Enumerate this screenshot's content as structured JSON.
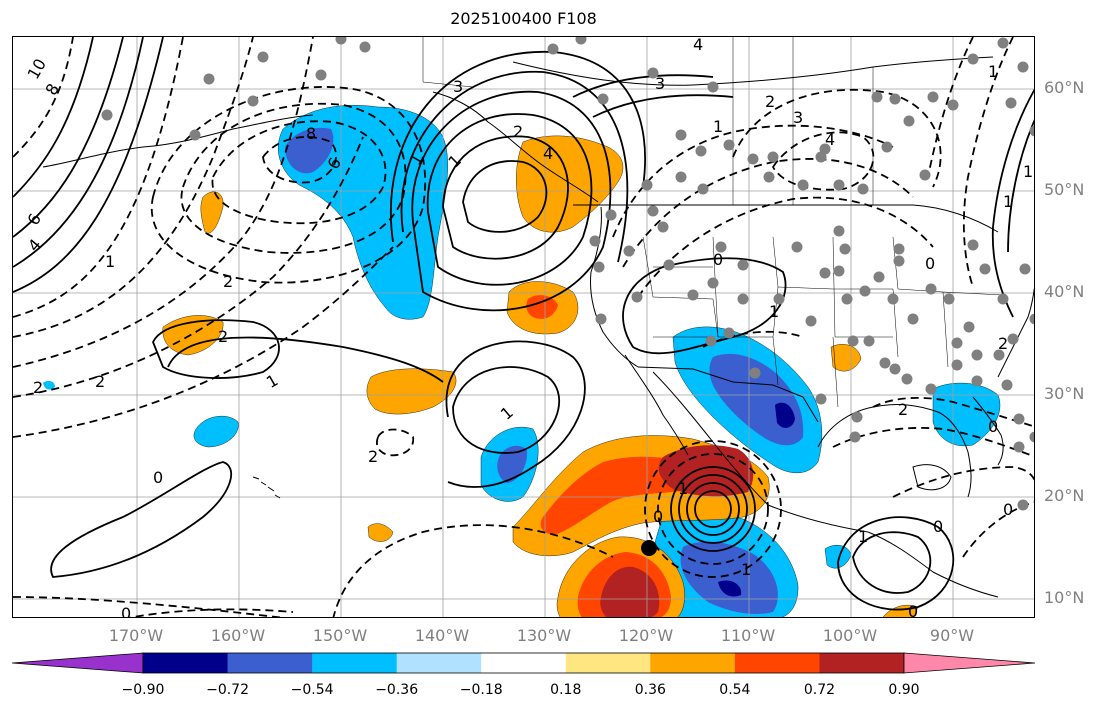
{
  "title": "2025100400 F108",
  "lat_labels": [
    {
      "text": "60°N",
      "lat": 60
    },
    {
      "text": "50°N",
      "lat": 50
    },
    {
      "text": "40°N",
      "lat": 40
    },
    {
      "text": "30°N",
      "lat": 30
    },
    {
      "text": "20°N",
      "lat": 20
    },
    {
      "text": "10°N",
      "lat": 10
    }
  ],
  "lon_labels": [
    {
      "text": "170°W",
      "lon": -170
    },
    {
      "text": "160°W",
      "lon": -160
    },
    {
      "text": "150°W",
      "lon": -150
    },
    {
      "text": "140°W",
      "lon": -140
    },
    {
      "text": "130°W",
      "lon": -130
    },
    {
      "text": "120°W",
      "lon": -120
    },
    {
      "text": "110°W",
      "lon": -110
    },
    {
      "text": "100°W",
      "lon": -100
    },
    {
      "text": "90°W",
      "lon": -90
    }
  ],
  "colorbar": {
    "ticks": [
      "−0.90",
      "−0.72",
      "−0.54",
      "−0.36",
      "−0.18",
      "0.18",
      "0.36",
      "0.54",
      "0.72",
      "0.90"
    ],
    "colors": [
      "#9932cc",
      "#00008b",
      "#3c5fd0",
      "#00bfff",
      "#b0e2ff",
      "#ffffff",
      "#ffe680",
      "#ffa500",
      "#ff4500",
      "#b22222",
      "#ff88aa"
    ]
  },
  "contour_labels": {
    "positive": [
      "4",
      "3",
      "3",
      "2",
      "1",
      "1",
      "1",
      "2",
      "1",
      "1",
      "1",
      "3",
      "4",
      "1",
      "2",
      "2",
      "1",
      "1",
      "1"
    ],
    "negative": [
      "10",
      "8",
      "6",
      "4",
      "2",
      "1",
      "2",
      "8",
      "6",
      "2",
      "1",
      "0",
      "4",
      "2",
      "0",
      "2",
      "1",
      "0",
      "0",
      "0",
      "0",
      "0",
      "0",
      "0",
      "1",
      "0",
      "0"
    ]
  },
  "marker": {
    "lon": -119.8,
    "lat": 15.0
  }
}
